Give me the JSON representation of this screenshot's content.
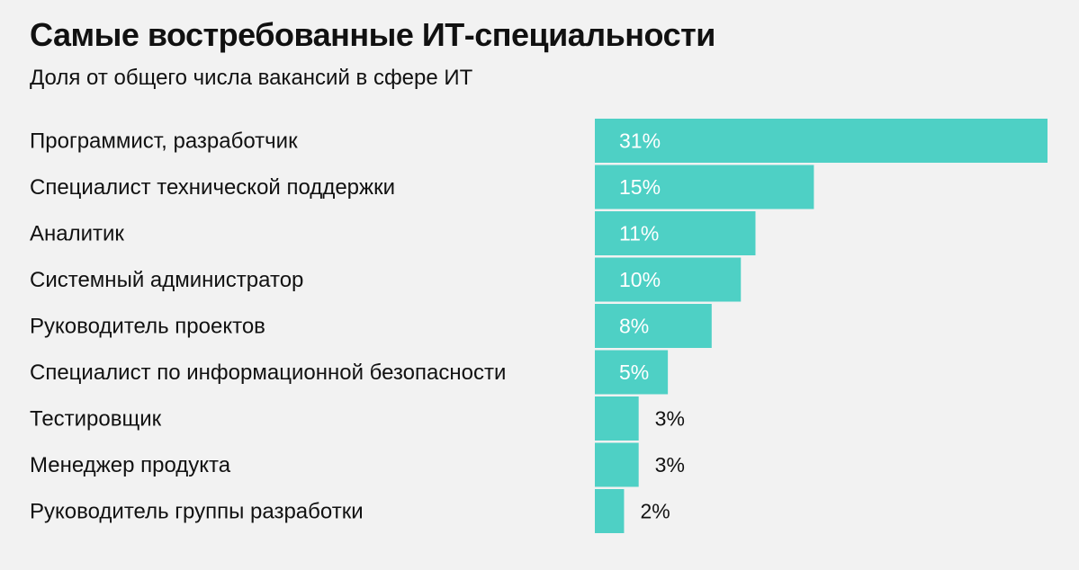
{
  "chart_data": {
    "type": "bar",
    "orientation": "horizontal",
    "title": "Самые востребованные ИТ-специальности",
    "subtitle": "Доля от общего числа вакансий в сфере ИТ",
    "categories": [
      "Программист, разработчик",
      "Специалист технической поддержки",
      "Аналитик",
      "Системный администратор",
      "Руководитель проектов",
      "Специалист по информационной безопасности",
      "Тестировщик",
      "Менеджер продукта",
      "Руководитель группы разработки"
    ],
    "values": [
      31,
      15,
      11,
      10,
      8,
      5,
      3,
      3,
      2
    ],
    "value_labels": [
      "31%",
      "15%",
      "11%",
      "10%",
      "8%",
      "5%",
      "3%",
      "3%",
      "2%"
    ],
    "unit": "%",
    "xlim": [
      0,
      31
    ],
    "grid": false,
    "legend": "none",
    "colors": {
      "bar": "#4ed0c5",
      "label_inside": "#ffffff",
      "label_outside": "#111111",
      "background": "#f2f2f2"
    }
  }
}
